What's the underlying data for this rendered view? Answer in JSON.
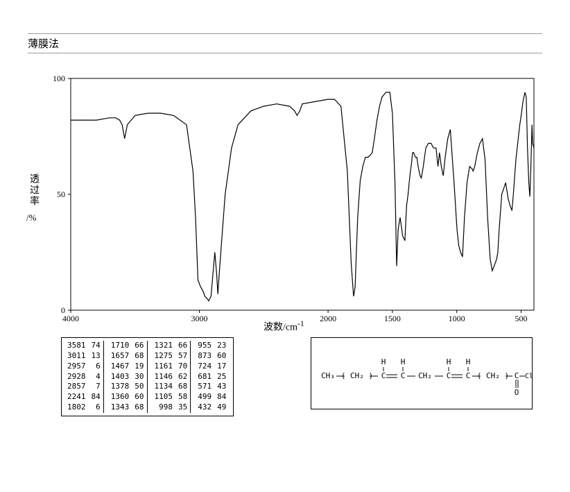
{
  "header_title": "薄膜法",
  "chart": {
    "type": "line",
    "ylabel": "透过率",
    "ylabel_unit": "/%",
    "xlabel": "波数/cm",
    "xlabel_sup": "-1",
    "yaxis": {
      "min": 0,
      "max": 100,
      "ticks": [
        0,
        50,
        100
      ]
    },
    "xaxis": {
      "min": 400,
      "max": 4000,
      "ticks": [
        4000,
        3000,
        2000,
        1500,
        1000,
        500
      ]
    },
    "background_color": "#ffffff",
    "line_color": "#000000",
    "line_width": 1.2,
    "axis_color": "#000000",
    "points": [
      [
        4000,
        82
      ],
      [
        3900,
        82
      ],
      [
        3800,
        82
      ],
      [
        3700,
        83
      ],
      [
        3650,
        83
      ],
      [
        3620,
        82
      ],
      [
        3600,
        80
      ],
      [
        3581,
        74
      ],
      [
        3560,
        80
      ],
      [
        3500,
        84
      ],
      [
        3400,
        85
      ],
      [
        3300,
        85
      ],
      [
        3200,
        84
      ],
      [
        3100,
        80
      ],
      [
        3050,
        60
      ],
      [
        3030,
        40
      ],
      [
        3011,
        13
      ],
      [
        2990,
        10
      ],
      [
        2970,
        8
      ],
      [
        2957,
        6
      ],
      [
        2940,
        5
      ],
      [
        2928,
        4
      ],
      [
        2910,
        6
      ],
      [
        2880,
        25
      ],
      [
        2865,
        15
      ],
      [
        2857,
        7
      ],
      [
        2840,
        20
      ],
      [
        2800,
        50
      ],
      [
        2750,
        70
      ],
      [
        2700,
        80
      ],
      [
        2600,
        86
      ],
      [
        2500,
        88
      ],
      [
        2400,
        89
      ],
      [
        2300,
        88
      ],
      [
        2260,
        86
      ],
      [
        2241,
        84
      ],
      [
        2220,
        86
      ],
      [
        2200,
        89
      ],
      [
        2100,
        90
      ],
      [
        2000,
        91
      ],
      [
        1950,
        91
      ],
      [
        1900,
        88
      ],
      [
        1850,
        60
      ],
      [
        1820,
        20
      ],
      [
        1802,
        6
      ],
      [
        1790,
        10
      ],
      [
        1770,
        40
      ],
      [
        1750,
        56
      ],
      [
        1730,
        62
      ],
      [
        1710,
        66
      ],
      [
        1690,
        66
      ],
      [
        1670,
        67
      ],
      [
        1657,
        68
      ],
      [
        1640,
        74
      ],
      [
        1620,
        82
      ],
      [
        1600,
        88
      ],
      [
        1580,
        92
      ],
      [
        1550,
        94
      ],
      [
        1520,
        94
      ],
      [
        1500,
        85
      ],
      [
        1480,
        55
      ],
      [
        1467,
        19
      ],
      [
        1455,
        35
      ],
      [
        1440,
        40
      ],
      [
        1420,
        32
      ],
      [
        1403,
        30
      ],
      [
        1390,
        45
      ],
      [
        1378,
        50
      ],
      [
        1368,
        56
      ],
      [
        1360,
        60
      ],
      [
        1350,
        64
      ],
      [
        1343,
        68
      ],
      [
        1335,
        68
      ],
      [
        1328,
        67
      ],
      [
        1321,
        66
      ],
      [
        1310,
        66
      ],
      [
        1300,
        62
      ],
      [
        1285,
        58
      ],
      [
        1275,
        57
      ],
      [
        1260,
        62
      ],
      [
        1240,
        70
      ],
      [
        1220,
        72
      ],
      [
        1200,
        72
      ],
      [
        1181,
        70
      ],
      [
        1161,
        70
      ],
      [
        1146,
        62
      ],
      [
        1134,
        68
      ],
      [
        1120,
        62
      ],
      [
        1105,
        58
      ],
      [
        1090,
        66
      ],
      [
        1070,
        74
      ],
      [
        1050,
        78
      ],
      [
        1020,
        54
      ],
      [
        998,
        35
      ],
      [
        985,
        28
      ],
      [
        970,
        25
      ],
      [
        955,
        23
      ],
      [
        940,
        40
      ],
      [
        920,
        55
      ],
      [
        900,
        62
      ],
      [
        880,
        61
      ],
      [
        873,
        60
      ],
      [
        860,
        62
      ],
      [
        840,
        68
      ],
      [
        820,
        72
      ],
      [
        800,
        74
      ],
      [
        780,
        65
      ],
      [
        760,
        40
      ],
      [
        740,
        22
      ],
      [
        724,
        17
      ],
      [
        710,
        19
      ],
      [
        690,
        22
      ],
      [
        681,
        25
      ],
      [
        670,
        35
      ],
      [
        650,
        50
      ],
      [
        620,
        55
      ],
      [
        600,
        48
      ],
      [
        585,
        45
      ],
      [
        571,
        43
      ],
      [
        560,
        50
      ],
      [
        540,
        65
      ],
      [
        520,
        75
      ],
      [
        510,
        80
      ],
      [
        499,
        84
      ],
      [
        485,
        90
      ],
      [
        470,
        94
      ],
      [
        460,
        92
      ],
      [
        450,
        70
      ],
      [
        440,
        55
      ],
      [
        432,
        49
      ],
      [
        425,
        60
      ],
      [
        415,
        80
      ],
      [
        410,
        72
      ],
      [
        400,
        70
      ]
    ]
  },
  "data_table": {
    "columns_per_group": 2,
    "groups": [
      [
        [
          3581,
          74
        ],
        [
          3011,
          13
        ],
        [
          2957,
          6
        ],
        [
          2928,
          4
        ],
        [
          2857,
          7
        ],
        [
          2241,
          84
        ],
        [
          1802,
          6
        ]
      ],
      [
        [
          1710,
          66
        ],
        [
          1657,
          68
        ],
        [
          1467,
          19
        ],
        [
          1403,
          30
        ],
        [
          1378,
          50
        ],
        [
          1360,
          60
        ],
        [
          1343,
          68
        ]
      ],
      [
        [
          1321,
          66
        ],
        [
          1275,
          57
        ],
        [
          1161,
          70
        ],
        [
          1146,
          62
        ],
        [
          1134,
          68
        ],
        [
          1105,
          58
        ],
        [
          998,
          35
        ]
      ],
      [
        [
          955,
          23
        ],
        [
          873,
          60
        ],
        [
          724,
          17
        ],
        [
          681,
          25
        ],
        [
          571,
          43
        ],
        [
          499,
          84
        ],
        [
          432,
          49
        ]
      ]
    ]
  },
  "structure": {
    "labels": {
      "ch3": "CH₃",
      "ch2_left": "( CH₂ )",
      "c": "C",
      "h": "H",
      "ch2_mid": "CH₂",
      "ch2_right": "( CH₂ )",
      "cocl_c": "C",
      "cl": "Cl",
      "o": "O"
    },
    "line_color": "#000000"
  }
}
